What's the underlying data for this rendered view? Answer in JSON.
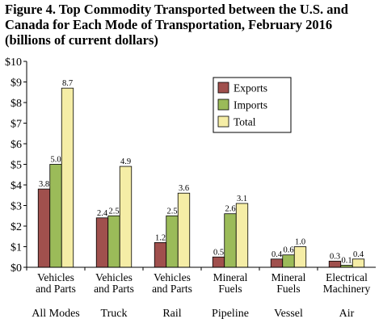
{
  "title_lines": [
    "Figure 4. Top Commodity Transported between the U.S. and",
    "Canada for Each Mode of Transportation, February 2016",
    "(billions of current dollars)"
  ],
  "chart_data": {
    "type": "bar",
    "title": "Figure 4. Top Commodity Transported between the U.S. and Canada for Each Mode of Transportation, February 2016 (billions of current dollars)",
    "xlabel": "",
    "ylabel": "",
    "ylim": [
      0,
      10
    ],
    "yticks": [
      "$0",
      "$1",
      "$2",
      "$3",
      "$4",
      "$5",
      "$6",
      "$7",
      "$8",
      "$9",
      "$10"
    ],
    "grid": false,
    "legend_position": "top-right",
    "categories": [
      {
        "commodity": [
          "Vehicles",
          "and Parts"
        ],
        "mode": "All Modes"
      },
      {
        "commodity": [
          "Vehicles",
          "and Parts"
        ],
        "mode": "Truck"
      },
      {
        "commodity": [
          "Vehicles",
          "and Parts"
        ],
        "mode": "Rail"
      },
      {
        "commodity": [
          "Mineral",
          "Fuels"
        ],
        "mode": "Pipeline"
      },
      {
        "commodity": [
          "Mineral",
          "Fuels"
        ],
        "mode": "Vessel"
      },
      {
        "commodity": [
          "Electrical",
          "Machinery"
        ],
        "mode": "Air"
      }
    ],
    "series": [
      {
        "name": "Exports",
        "color": "#A0504D",
        "values": [
          3.8,
          2.4,
          1.2,
          0.5,
          0.4,
          0.3
        ],
        "labels": [
          "3.8",
          "2.4",
          "1.2",
          "0.5",
          "0.4",
          "0.3"
        ]
      },
      {
        "name": "Imports",
        "color": "#9BBB59",
        "values": [
          5.0,
          2.5,
          2.5,
          2.6,
          0.6,
          0.1
        ],
        "labels": [
          "5.0",
          "2.5",
          "2.5",
          "2.6",
          "0.6",
          "0.1"
        ]
      },
      {
        "name": "Total",
        "color": "#F5EDA6",
        "values": [
          8.7,
          4.9,
          3.6,
          3.1,
          1.0,
          0.4
        ],
        "labels": [
          "8.7",
          "4.9",
          "3.6",
          "3.1",
          "1.0",
          "0.4"
        ]
      }
    ]
  }
}
